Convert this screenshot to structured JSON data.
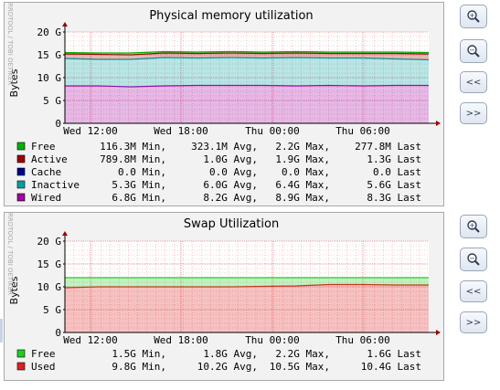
{
  "colors": {
    "plot_bg": "#ffffff",
    "grid": "#e69a9a",
    "free": "#00b000",
    "active": "#a00000",
    "cache": "#000090",
    "inactive": "#00a0a0",
    "wired": "#a000a0",
    "swap_free": "#22cc22",
    "swap_used": "#dd2222"
  },
  "side_label": "RRDTOOL / TOBI OETIKER",
  "buttons": {
    "zoom_in": "+",
    "zoom_out": "−",
    "back": "<<",
    "forward": ">>"
  },
  "charts": [
    {
      "id": "mem",
      "title": "Physical memory utilization",
      "ylabel": "Bytes",
      "legend": [
        {
          "name": "Free",
          "min": "116.3M Min,",
          "avg": "323.1M Avg,",
          "max": "2.2G Max,",
          "last": "277.8M Last",
          "color": "#00b000"
        },
        {
          "name": "Active",
          "min": "789.8M Min,",
          "avg": "1.0G Avg,",
          "max": "1.9G Max,",
          "last": "1.3G Last",
          "color": "#a00000"
        },
        {
          "name": "Cache",
          "min": "0.0 Min,",
          "avg": "0.0 Avg,",
          "max": "0.0 Max,",
          "last": "0.0 Last",
          "color": "#000090"
        },
        {
          "name": "Inactive",
          "min": "5.3G Min,",
          "avg": "6.0G Avg,",
          "max": "6.4G Max,",
          "last": "5.6G Last",
          "color": "#00a0a0"
        },
        {
          "name": "Wired",
          "min": "6.8G Min,",
          "avg": "8.2G Avg,",
          "max": "8.9G Max,",
          "last": "8.3G Last",
          "color": "#a000a0"
        }
      ]
    },
    {
      "id": "swap",
      "title": "Swap Utilization",
      "ylabel": "Bytes",
      "legend": [
        {
          "name": "Free",
          "min": "1.5G Min,",
          "avg": "1.8G Avg,",
          "max": "2.2G Max,",
          "last": "1.6G Last",
          "color": "#22cc22"
        },
        {
          "name": "Used",
          "min": "9.8G Min,",
          "avg": "10.2G Avg,",
          "max": "10.5G Max,",
          "last": "10.4G Last",
          "color": "#dd2222"
        }
      ]
    }
  ],
  "chart_data": [
    {
      "type": "area",
      "title": "Physical memory utilization",
      "ylabel": "Bytes",
      "y_ticks": [
        "0",
        "5 G",
        "10 G",
        "15 G",
        "20 G"
      ],
      "ylim": [
        0,
        20
      ],
      "x_ticks": [
        "Wed 12:00",
        "Wed 18:00",
        "Thu 00:00",
        "Thu 06:00"
      ],
      "grid": true,
      "series": [
        {
          "name": "Wired",
          "values": [
            8.2,
            8.2,
            8.0,
            8.2,
            8.3,
            8.3,
            8.3,
            8.2,
            8.3,
            8.2,
            8.3,
            8.3
          ]
        },
        {
          "name": "Inactive",
          "values": [
            6.0,
            5.8,
            6.0,
            6.2,
            6.0,
            6.1,
            6.0,
            6.2,
            6.0,
            6.1,
            5.8,
            5.6
          ]
        },
        {
          "name": "Active",
          "values": [
            1.0,
            1.1,
            1.0,
            1.0,
            1.0,
            1.0,
            1.0,
            1.0,
            1.0,
            1.0,
            1.2,
            1.3
          ]
        },
        {
          "name": "Cache",
          "values": [
            0,
            0,
            0,
            0,
            0,
            0,
            0,
            0,
            0,
            0,
            0,
            0
          ]
        },
        {
          "name": "Free",
          "values": [
            0.3,
            0.3,
            0.4,
            0.3,
            0.3,
            0.3,
            0.3,
            0.3,
            0.3,
            0.3,
            0.3,
            0.3
          ]
        }
      ]
    },
    {
      "type": "area",
      "title": "Swap Utilization",
      "ylabel": "Bytes",
      "y_ticks": [
        "0",
        "5 G",
        "10 G",
        "15 G",
        "20 G"
      ],
      "ylim": [
        0,
        20
      ],
      "x_ticks": [
        "Wed 12:00",
        "Wed 18:00",
        "Thu 00:00",
        "Thu 06:00"
      ],
      "grid": true,
      "series": [
        {
          "name": "Used",
          "values": [
            9.8,
            10.0,
            10.0,
            10.0,
            10.0,
            10.0,
            10.1,
            10.2,
            10.5,
            10.5,
            10.4,
            10.4
          ]
        },
        {
          "name": "Free",
          "values": [
            2.2,
            2.0,
            2.0,
            2.0,
            2.0,
            2.0,
            1.9,
            1.8,
            1.5,
            1.5,
            1.6,
            1.6
          ]
        }
      ]
    }
  ]
}
